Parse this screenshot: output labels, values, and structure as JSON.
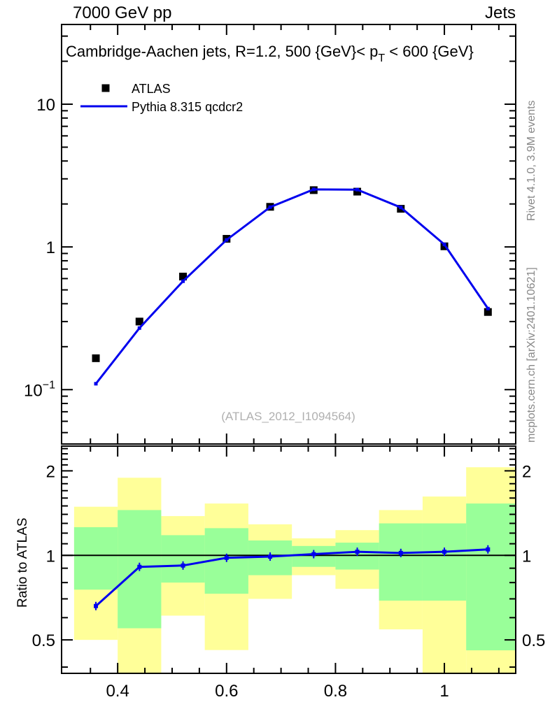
{
  "header": {
    "beam": "7000 GeV pp",
    "category": "Jets"
  },
  "side_notes": {
    "top": "Rivet 4.1.0,  3.9M events",
    "bottom": "mcplots.cern.ch [arXiv:2401.10621]"
  },
  "watermark": "(ATLAS_2012_I1094564)",
  "legend": {
    "data_label": "ATLAS",
    "mc_label": "Pythia 8.315 qcdcr2"
  },
  "colors": {
    "mc_line": "#0000ee",
    "data_marker": "#000000",
    "band_green": "#99ff99",
    "band_yellow": "#ffff99",
    "frame": "#000000",
    "watermark": "#b0b0b0",
    "side_note": "#888888"
  },
  "chart_data": {
    "type": "line",
    "title_parts": {
      "prefix": "Cambridge-Aachen jets, R=1.2,  500 {GeV}< p",
      "sub": "T",
      "suffix": " < 600 {GeV}"
    },
    "main": {
      "yscale": "log",
      "xlim": [
        0.297,
        1.131
      ],
      "ylim": [
        0.0416,
        36.2
      ],
      "x": [
        0.36,
        0.44,
        0.52,
        0.6,
        0.68,
        0.76,
        0.84,
        0.92,
        1.0,
        1.08
      ],
      "series": [
        {
          "name": "ATLAS",
          "type": "points",
          "marker": "square",
          "color": "#000000",
          "values": [
            0.166,
            0.3,
            0.62,
            1.14,
            1.91,
            2.5,
            2.44,
            1.85,
            1.01,
            0.35
          ]
        },
        {
          "name": "Pythia 8.315 qcdcr2",
          "type": "line",
          "color": "#0000ee",
          "values": [
            0.11,
            0.27,
            0.575,
            1.12,
            1.9,
            2.53,
            2.52,
            1.89,
            1.04,
            0.37
          ]
        }
      ],
      "xticks": [
        {
          "v": 0.4,
          "label": "0.4"
        },
        {
          "v": 0.6,
          "label": "0.6"
        },
        {
          "v": 0.8,
          "label": "0.8"
        },
        {
          "v": 1.0,
          "label": "1"
        }
      ],
      "yticks": [
        {
          "v": 10,
          "mantissa": "10",
          "exponent": ""
        },
        {
          "v": 1,
          "mantissa": "1",
          "exponent": ""
        },
        {
          "v": 0.1,
          "mantissa": "10",
          "exponent": "−1"
        }
      ]
    },
    "ratio": {
      "ylabel": "Ratio to ATLAS",
      "yscale": "log",
      "ylim": [
        0.38,
        2.45
      ],
      "yticks": [
        {
          "v": 0.5,
          "label": "0.5"
        },
        {
          "v": 1,
          "label": "1"
        },
        {
          "v": 2,
          "label": "2"
        }
      ],
      "x": [
        0.36,
        0.44,
        0.52,
        0.6,
        0.68,
        0.76,
        0.84,
        0.92,
        1.0,
        1.08
      ],
      "values": [
        0.66,
        0.91,
        0.92,
        0.98,
        0.99,
        1.01,
        1.03,
        1.02,
        1.03,
        1.05
      ],
      "bands": [
        {
          "x0": 0.32,
          "x1": 0.4,
          "green": [
            0.755,
            1.26
          ],
          "yellow": [
            0.5,
            1.49
          ]
        },
        {
          "x0": 0.4,
          "x1": 0.48,
          "green": [
            0.55,
            1.45
          ],
          "yellow": [
            0.37,
            1.89
          ]
        },
        {
          "x0": 0.48,
          "x1": 0.56,
          "green": [
            0.8,
            1.18
          ],
          "yellow": [
            0.61,
            1.38
          ]
        },
        {
          "x0": 0.56,
          "x1": 0.64,
          "green": [
            0.73,
            1.25
          ],
          "yellow": [
            0.46,
            1.53
          ]
        },
        {
          "x0": 0.64,
          "x1": 0.72,
          "green": [
            0.85,
            1.13
          ],
          "yellow": [
            0.7,
            1.29
          ]
        },
        {
          "x0": 0.72,
          "x1": 0.8,
          "green": [
            0.91,
            1.08
          ],
          "yellow": [
            0.85,
            1.15
          ]
        },
        {
          "x0": 0.8,
          "x1": 0.88,
          "green": [
            0.89,
            1.11
          ],
          "yellow": [
            0.76,
            1.23
          ]
        },
        {
          "x0": 0.88,
          "x1": 0.96,
          "green": [
            0.69,
            1.3
          ],
          "yellow": [
            0.545,
            1.45
          ]
        },
        {
          "x0": 0.96,
          "x1": 1.04,
          "green": [
            0.69,
            1.3
          ],
          "yellow": [
            0.37,
            1.62
          ]
        },
        {
          "x0": 1.04,
          "x1": 1.131,
          "green": [
            0.459,
            1.53
          ],
          "yellow": [
            0.37,
            2.06
          ]
        }
      ]
    }
  }
}
